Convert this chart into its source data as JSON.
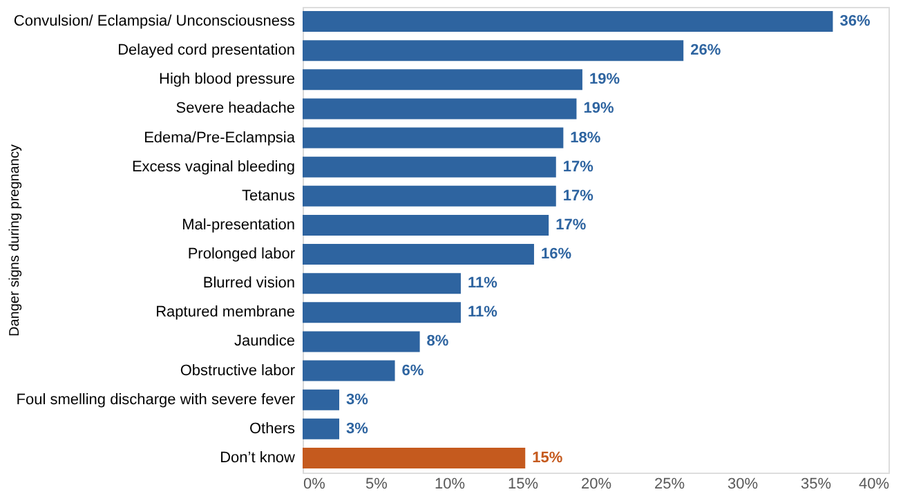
{
  "chart_data": {
    "type": "bar",
    "orientation": "horizontal",
    "ylabel": "Danger signs during pregnancy",
    "categories": [
      "Convulsion/ Eclampsia/ Unconsciousness",
      "Delayed cord presentation",
      "High blood pressure",
      "Severe headache",
      "Edema/Pre-Eclampsia",
      "Excess vaginal bleeding",
      "Tetanus",
      "Mal-presentation",
      "Prolonged labor",
      "Blurred vision",
      "Raptured membrane",
      "Jaundice",
      "Obstructive labor",
      "Foul smelling discharge with severe fever",
      "Others",
      "Don’t know"
    ],
    "values": [
      36.2,
      26.0,
      19.1,
      18.7,
      17.8,
      17.3,
      17.3,
      16.8,
      15.8,
      10.8,
      10.8,
      8.0,
      6.3,
      2.5,
      2.5,
      15.2
    ],
    "value_labels": [
      "36%",
      "26%",
      "19%",
      "19%",
      "18%",
      "17%",
      "17%",
      "17%",
      "16%",
      "11%",
      "11%",
      "8%",
      "6%",
      "3%",
      "3%",
      "15%"
    ],
    "colors": [
      "#2e64a0",
      "#2e64a0",
      "#2e64a0",
      "#2e64a0",
      "#2e64a0",
      "#2e64a0",
      "#2e64a0",
      "#2e64a0",
      "#2e64a0",
      "#2e64a0",
      "#2e64a0",
      "#2e64a0",
      "#2e64a0",
      "#2e64a0",
      "#2e64a0",
      "#c55a1e"
    ],
    "xlim": [
      0,
      40
    ],
    "xticks": [
      {
        "value": 0,
        "label": "0%"
      },
      {
        "value": 5,
        "label": "5%"
      },
      {
        "value": 10,
        "label": "10%"
      },
      {
        "value": 15,
        "label": "15%"
      },
      {
        "value": 20,
        "label": "20%"
      },
      {
        "value": 25,
        "label": "25%"
      },
      {
        "value": 30,
        "label": "30%"
      },
      {
        "value": 35,
        "label": "35%"
      },
      {
        "value": 40,
        "label": "40%"
      }
    ],
    "grid": false
  }
}
